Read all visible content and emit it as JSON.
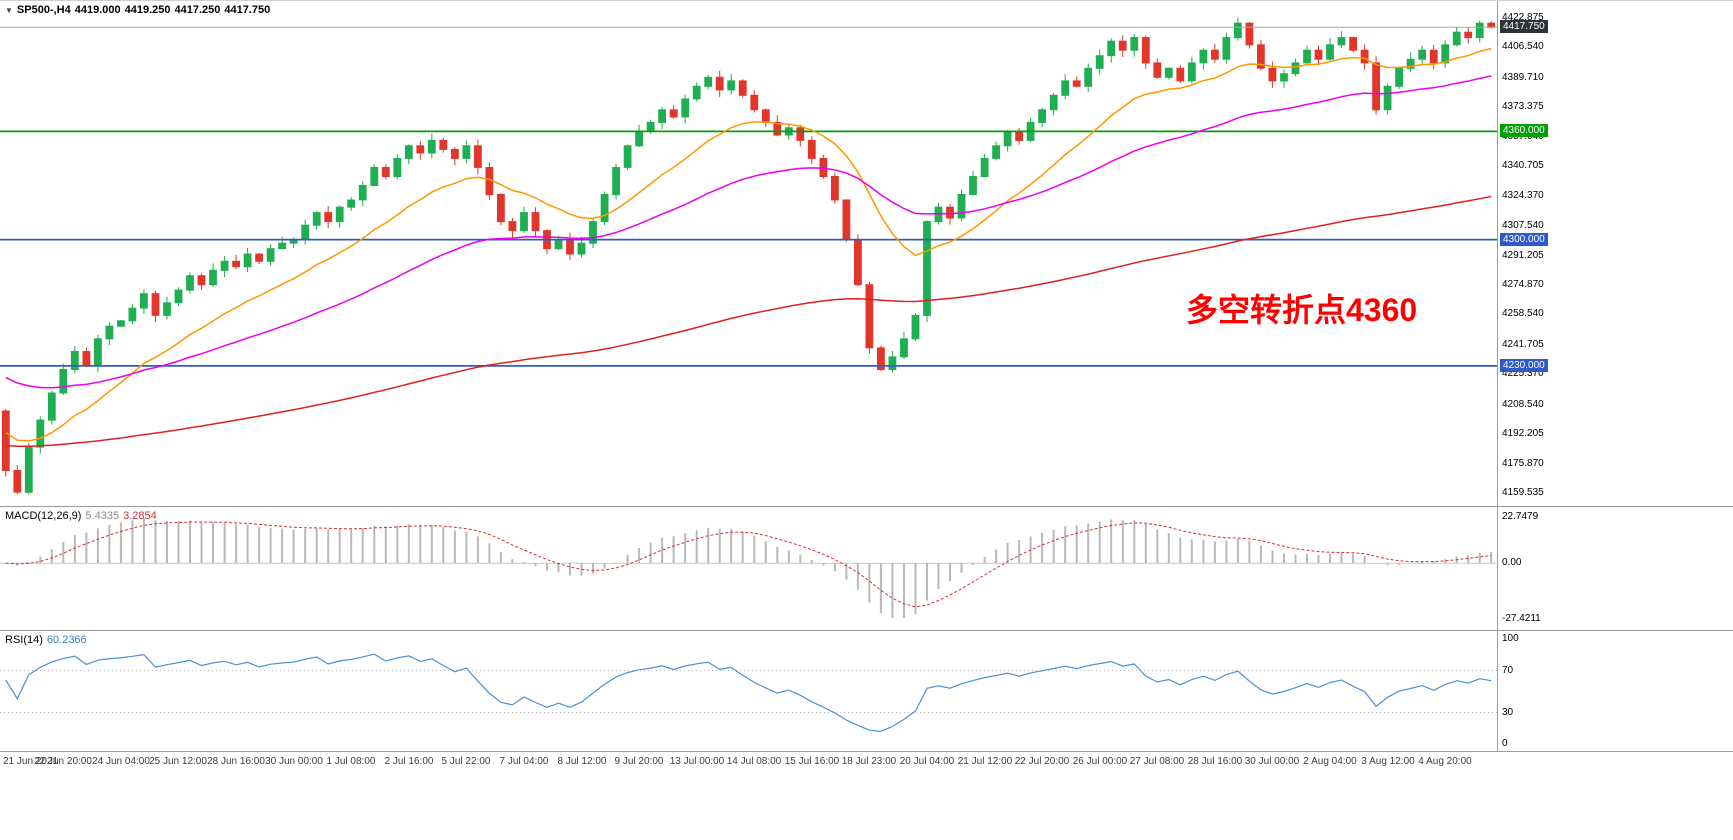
{
  "header": {
    "collapse_icon": "▼",
    "symbol_period": "SP500-,H4",
    "open": "4419.000",
    "high": "4419.250",
    "low": "4417.250",
    "close": "4417.750"
  },
  "annotation": {
    "text": "多空转折点4360",
    "color": "#FF0000"
  },
  "price_axis": {
    "top_value": 4422.875,
    "bottom_value": 4159.535,
    "ticks": [
      "4422.875",
      "4406.540",
      "4389.710",
      "4373.375",
      "4357.040",
      "4340.705",
      "4324.370",
      "4307.540",
      "4291.205",
      "4274.870",
      "4258.540",
      "4241.705",
      "4225.370",
      "4208.540",
      "4192.205",
      "4175.870",
      "4159.535"
    ],
    "current_price": {
      "value": 4417.75,
      "label": "4417.750",
      "bg": "#2E3338"
    }
  },
  "levels": [
    {
      "price": 4360,
      "label": "4360.000",
      "color": "#00A100"
    },
    {
      "price": 4300,
      "label": "4300.000",
      "color": "#3259C9"
    },
    {
      "price": 4230,
      "label": "4230.000",
      "color": "#3259C9"
    }
  ],
  "time_axis": {
    "labels": [
      "21 Jun 2021",
      "22 Jun 20:00",
      "24 Jun 04:00",
      "25 Jun 12:00",
      "28 Jun 16:00",
      "30 Jun 00:00",
      "1 Jul 08:00",
      "2 Jul 16:00",
      "5 Jul 22:00",
      "7 Jul 04:00",
      "8 Jul 12:00",
      "9 Jul 20:00",
      "13 Jul 00:00",
      "14 Jul 08:00",
      "15 Jul 16:00",
      "18 Jul 23:00",
      "20 Jul 04:00",
      "21 Jul 12:00",
      "22 Jul 20:00",
      "26 Jul 00:00",
      "27 Jul 08:00",
      "28 Jul 16:00",
      "30 Jul 00:00",
      "2 Aug 04:00",
      "3 Aug 12:00",
      "4 Aug 20:00"
    ]
  },
  "chart_data": {
    "type": "candlestick",
    "symbol": "SP500-",
    "timeframe": "H4",
    "quote": {
      "open": 4419.0,
      "high": 4419.25,
      "low": 4417.25,
      "close": 4417.75
    },
    "price_range": [
      4159.535,
      4422.875
    ],
    "bars_per_label": 5,
    "first_open": 4205,
    "closes": [
      4172,
      4160,
      4185,
      4200,
      4215,
      4228,
      4238,
      4230,
      4245,
      4252,
      4255,
      4262,
      4270,
      4258,
      4265,
      4272,
      4280,
      4275,
      4283,
      4288,
      4285,
      4292,
      4288,
      4295,
      4298,
      4300,
      4308,
      4315,
      4310,
      4318,
      4322,
      4330,
      4340,
      4335,
      4345,
      4352,
      4348,
      4355,
      4350,
      4345,
      4352,
      4340,
      4325,
      4310,
      4305,
      4315,
      4305,
      4295,
      4300,
      4292,
      4298,
      4310,
      4325,
      4340,
      4352,
      4360,
      4365,
      4372,
      4368,
      4378,
      4385,
      4390,
      4383,
      4388,
      4380,
      4372,
      4365,
      4358,
      4362,
      4355,
      4345,
      4335,
      4322,
      4300,
      4275,
      4240,
      4228,
      4235,
      4245,
      4258,
      4310,
      4318,
      4312,
      4325,
      4335,
      4345,
      4352,
      4360,
      4355,
      4365,
      4372,
      4380,
      4388,
      4385,
      4395,
      4402,
      4410,
      4405,
      4412,
      4398,
      4390,
      4395,
      4388,
      4398,
      4405,
      4400,
      4412,
      4420,
      4408,
      4395,
      4388,
      4392,
      4398,
      4405,
      4400,
      4408,
      4412,
      4405,
      4398,
      4372,
      4385,
      4395,
      4400,
      4405,
      4398,
      4408,
      4415,
      4412,
      4420,
      4417.75
    ],
    "up_color": "#1FAE52",
    "down_color": "#E2362A",
    "moving_averages": [
      {
        "name": "fast-orange",
        "calc_period": 15,
        "seed": 4196,
        "color": "#FF9800"
      },
      {
        "name": "mid-magenta",
        "calc_period": 42,
        "seed": 4226,
        "color": "#EE00EE"
      },
      {
        "name": "slow-red",
        "calc_period": 160,
        "seed": 4186,
        "color": "#E02020"
      }
    ],
    "macd": {
      "label": "MACD(12,26,9)",
      "value_main": "5.4335",
      "value_signal": "3.2854",
      "calc_fast": 8,
      "calc_slow": 18,
      "calc_signal": 6,
      "axis": [
        "22.7479",
        "0.00",
        "-27.4211"
      ],
      "axis_values": [
        22.7479,
        0,
        -27.4211
      ],
      "hist_color": "#B8B8B8",
      "signal_color": "#D53030"
    },
    "rsi": {
      "label": "RSI(14)",
      "value": "60.2366",
      "calc_period": 10,
      "axis": [
        "100",
        "70",
        "30",
        "0"
      ],
      "levels": [
        70,
        30
      ],
      "line_color": "#4A90D8"
    }
  }
}
